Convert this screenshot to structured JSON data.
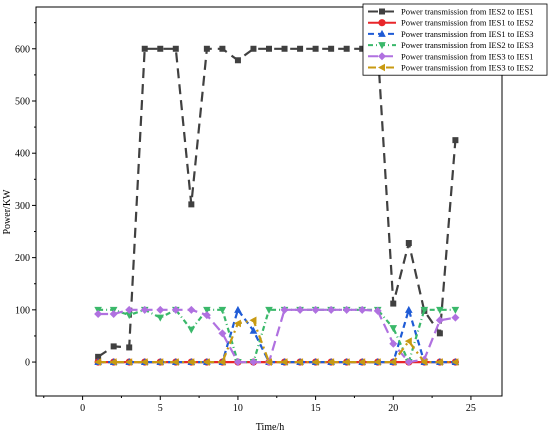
{
  "chart_data": {
    "type": "line",
    "xlabel": "Time/h",
    "ylabel": "Power/KW",
    "xlim": [
      -3,
      27
    ],
    "ylim": [
      -65,
      680
    ],
    "xticks": [
      0,
      5,
      10,
      15,
      20,
      25
    ],
    "yticks": [
      0,
      100,
      200,
      300,
      400,
      500,
      600
    ],
    "grid": false,
    "legend_position": "top-right",
    "series": [
      {
        "name": "Power transmission from IES2 to IES1",
        "color": "#404040",
        "marker": "square",
        "dash": "10,6",
        "x": [
          1,
          2,
          3,
          4,
          5,
          6,
          7,
          8,
          9,
          10,
          11,
          12,
          13,
          14,
          15,
          16,
          17,
          18,
          19,
          20,
          21,
          22,
          23,
          24
        ],
        "values": [
          10,
          30,
          28,
          600,
          600,
          600,
          302,
          600,
          600,
          578,
          600,
          600,
          600,
          600,
          600,
          600,
          600,
          600,
          600,
          112,
          228,
          98,
          55,
          425
        ]
      },
      {
        "name": "Power transmission from IES1 to IES2",
        "color": "#e8262a",
        "marker": "circle",
        "dash": "",
        "x": [
          1,
          2,
          3,
          4,
          5,
          6,
          7,
          8,
          9,
          10,
          11,
          12,
          13,
          14,
          15,
          16,
          17,
          18,
          19,
          20,
          21,
          22,
          23,
          24
        ],
        "values": [
          0,
          0,
          0,
          0,
          0,
          0,
          0,
          0,
          0,
          0,
          0,
          0,
          0,
          0,
          0,
          0,
          0,
          0,
          0,
          0,
          0,
          0,
          0,
          0
        ]
      },
      {
        "name": "Power transmission from IES1 to IES3",
        "color": "#1f5bd6",
        "marker": "triangle-up",
        "dash": "6,4",
        "x": [
          1,
          2,
          3,
          4,
          5,
          6,
          7,
          8,
          9,
          10,
          11,
          12,
          13,
          14,
          15,
          16,
          17,
          18,
          19,
          20,
          21,
          22,
          23,
          24
        ],
        "values": [
          0,
          0,
          0,
          0,
          0,
          0,
          0,
          0,
          0,
          100,
          60,
          0,
          0,
          0,
          0,
          0,
          0,
          0,
          0,
          0,
          100,
          0,
          0,
          0
        ]
      },
      {
        "name": "Power transmission from IES2 to IES3",
        "color": "#3ab86a",
        "marker": "triangle-down",
        "dash": "5,3,1,3",
        "x": [
          1,
          2,
          3,
          4,
          5,
          6,
          7,
          8,
          9,
          10,
          11,
          12,
          13,
          14,
          15,
          16,
          17,
          18,
          19,
          20,
          21,
          22,
          23,
          24
        ],
        "values": [
          100,
          100,
          90,
          100,
          85,
          100,
          62,
          100,
          100,
          0,
          0,
          100,
          100,
          100,
          100,
          100,
          100,
          100,
          100,
          65,
          0,
          100,
          100,
          100
        ]
      },
      {
        "name": "Power transmission from IES3 to IES1",
        "color": "#b071e0",
        "marker": "diamond",
        "dash": "10,5",
        "x": [
          1,
          2,
          3,
          4,
          5,
          6,
          7,
          8,
          9,
          10,
          11,
          12,
          13,
          14,
          15,
          16,
          17,
          18,
          19,
          20,
          21,
          22,
          23,
          24
        ],
        "values": [
          92,
          92,
          100,
          100,
          100,
          100,
          100,
          90,
          55,
          0,
          0,
          0,
          100,
          100,
          100,
          100,
          100,
          100,
          98,
          35,
          0,
          5,
          80,
          85
        ]
      },
      {
        "name": "Power transmission from IES3 to IES2",
        "color": "#c89a12",
        "marker": "triangle-left",
        "dash": "8,4,2,4",
        "x": [
          1,
          2,
          3,
          4,
          5,
          6,
          7,
          8,
          9,
          10,
          11,
          12,
          13,
          14,
          15,
          16,
          17,
          18,
          19,
          20,
          21,
          22,
          23,
          24
        ],
        "values": [
          0,
          0,
          0,
          0,
          0,
          0,
          0,
          0,
          0,
          74,
          80,
          0,
          0,
          0,
          0,
          0,
          0,
          0,
          0,
          0,
          40,
          0,
          0,
          0
        ]
      }
    ]
  }
}
